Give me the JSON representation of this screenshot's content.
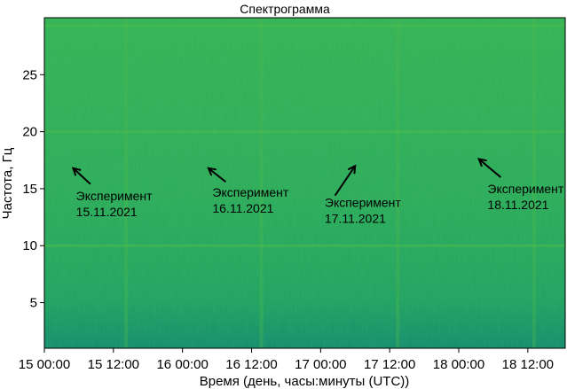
{
  "chart_data": {
    "type": "heatmap",
    "title": "Спектрограмма",
    "xlabel": "Время (день, часы:минуты (UTC))",
    "ylabel": "Частота, Гц",
    "x_range_hours": [
      0,
      90.5
    ],
    "ylim": [
      1,
      30
    ],
    "x_ticks": [
      {
        "hours": 0,
        "label": "15 00:00"
      },
      {
        "hours": 12,
        "label": "15 12:00"
      },
      {
        "hours": 24,
        "label": "16 00:00"
      },
      {
        "hours": 36,
        "label": "16 12:00"
      },
      {
        "hours": 48,
        "label": "17 00:00"
      },
      {
        "hours": 60,
        "label": "17 12:00"
      },
      {
        "hours": 72,
        "label": "18 00:00"
      },
      {
        "hours": 84,
        "label": "18 12:00"
      }
    ],
    "y_ticks": [
      5,
      10,
      15,
      20,
      25
    ],
    "colors": {
      "base": "#2aa85a",
      "light": "#3bb556",
      "dark": "#1a9168",
      "band": "#4cbb4a"
    },
    "horizontal_bands_hz": [
      29.3,
      20,
      10
    ],
    "vertical_bands_hours": [
      14.2,
      37.7,
      61.4,
      85.1
    ],
    "annotations": [
      {
        "label": "Эксперимент",
        "date": "15.11.2021",
        "text_x_hours": 5.5,
        "text_y_hz": 14.0,
        "arrow_from": [
          8.0,
          15.4
        ],
        "arrow_to": [
          5.0,
          16.8
        ]
      },
      {
        "label": "Эксперимент",
        "date": "16.11.2021",
        "text_x_hours": 29.2,
        "text_y_hz": 14.3,
        "arrow_from": [
          31.5,
          15.6
        ],
        "arrow_to": [
          28.5,
          16.8
        ]
      },
      {
        "label": "Эксперимент",
        "date": "17.11.2021",
        "text_x_hours": 48.7,
        "text_y_hz": 13.4,
        "arrow_from": [
          50.5,
          14.4
        ],
        "arrow_to": [
          54.0,
          17.0
        ]
      },
      {
        "label": "Эксперимент",
        "date": "18.11.2021",
        "text_x_hours": 77.0,
        "text_y_hz": 14.6,
        "arrow_from": [
          79.3,
          16.0
        ],
        "arrow_to": [
          75.5,
          17.6
        ]
      }
    ]
  }
}
